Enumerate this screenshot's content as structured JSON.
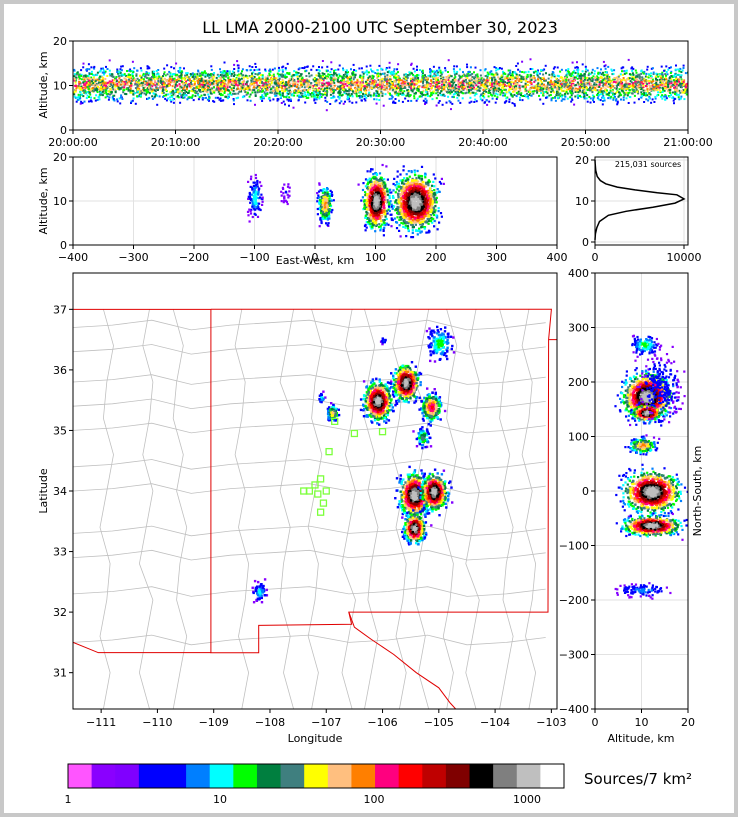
{
  "chart_data": [
    {
      "type": "heatmap",
      "panel": "time-altitude",
      "title": "LL LMA 2000-2100 UTC September 30, 2023",
      "xlabel": "",
      "ylabel": "Altitude, km",
      "xticks": [
        "20:00:00",
        "20:10:00",
        "20:20:00",
        "20:30:00",
        "20:40:00",
        "20:50:00",
        "21:00:00"
      ],
      "yticks": [
        "0",
        "10",
        "20"
      ],
      "ylim": [
        0,
        20
      ],
      "grid": true
    },
    {
      "type": "heatmap",
      "panel": "east-west-altitude",
      "xlabel": "East-West, km",
      "ylabel": "Altitude, km",
      "xticks": [
        "−400",
        "−300",
        "−200",
        "−100",
        "0",
        "100",
        "200",
        "300",
        "400"
      ],
      "yticks": [
        "0",
        "10",
        "20"
      ],
      "xlim": [
        -400,
        400
      ],
      "ylim": [
        0,
        20
      ],
      "grid": true,
      "cells": [
        {
          "x": 100,
          "y": 10,
          "peak": "1000+"
        },
        {
          "x": 165,
          "y": 10,
          "peak": "1000+"
        },
        {
          "x": 15,
          "y": 10,
          "peak": "100"
        },
        {
          "x": -100,
          "y": 11,
          "peak": "10"
        }
      ]
    },
    {
      "type": "line",
      "panel": "altitude-histogram",
      "annotation": "215,031 sources",
      "xticks": [
        "0",
        "10000"
      ],
      "yticks": [
        "0",
        "10",
        "20"
      ],
      "xlim": [
        0,
        10000
      ],
      "ylim": [
        0,
        20
      ],
      "series": [
        {
          "x": [
            0,
            50,
            200,
            500,
            1500,
            3500,
            6500,
            9000,
            10000,
            9200,
            7000,
            4500,
            2500,
            1200,
            600,
            250,
            80,
            20,
            0
          ],
          "y": [
            0.5,
            2,
            3.5,
            5,
            6.5,
            7.5,
            8.5,
            9.5,
            10.5,
            11.5,
            12,
            12.7,
            13.4,
            14.2,
            15,
            16,
            17.5,
            19,
            20
          ]
        }
      ]
    },
    {
      "type": "heatmap",
      "panel": "plan-view",
      "xlabel": "Longitude",
      "ylabel": "Latitude",
      "xticks": [
        "−111",
        "−110",
        "−109",
        "−108",
        "−107",
        "−106",
        "−105",
        "−104",
        "−103"
      ],
      "yticks": [
        "31",
        "32",
        "33",
        "34",
        "35",
        "36",
        "37"
      ],
      "xlim": [
        -111.5,
        -102.9
      ],
      "ylim": [
        30.4,
        37.6
      ],
      "stations": [
        [
          -107.3,
          34.0
        ],
        [
          -107.2,
          34.1
        ],
        [
          -107.1,
          34.2
        ],
        [
          -107.0,
          34.0
        ],
        [
          -107.15,
          33.95
        ],
        [
          -107.05,
          33.8
        ],
        [
          -107.1,
          33.65
        ],
        [
          -106.95,
          34.65
        ],
        [
          -106.85,
          35.15
        ],
        [
          -106.5,
          34.95
        ],
        [
          -106.0,
          34.98
        ],
        [
          -107.4,
          34.0
        ]
      ],
      "cells": [
        {
          "lon": -105.45,
          "lat": 33.95,
          "peak": "1000+"
        },
        {
          "lon": -105.1,
          "lat": 34.0,
          "peak": "1000+"
        },
        {
          "lon": -105.45,
          "lat": 33.4,
          "peak": "1000+"
        },
        {
          "lon": -106.1,
          "lat": 35.55,
          "peak": "1000+"
        },
        {
          "lon": -105.6,
          "lat": 35.8,
          "peak": "1000+"
        },
        {
          "lon": -105.15,
          "lat": 35.4,
          "peak": "100"
        },
        {
          "lon": -106.9,
          "lat": 35.3,
          "peak": "100"
        },
        {
          "lon": -105.0,
          "lat": 36.45,
          "peak": "10"
        },
        {
          "lon": -108.2,
          "lat": 32.35,
          "peak": "10"
        }
      ]
    },
    {
      "type": "heatmap",
      "panel": "altitude-north-south",
      "xlabel": "Altitude, km",
      "ylabel": "North-South, km",
      "xticks": [
        "0",
        "10",
        "20"
      ],
      "yticks": [
        "−400",
        "−300",
        "−200",
        "−100",
        "0",
        "100",
        "200",
        "300",
        "400"
      ],
      "xlim": [
        0,
        20
      ],
      "ylim": [
        -400,
        400
      ],
      "cells": [
        {
          "alt": 11,
          "ns": 180,
          "peak": "1000+"
        },
        {
          "alt": 11,
          "ns": 150,
          "peak": "1000+"
        },
        {
          "alt": 10,
          "ns": 85,
          "peak": "100"
        },
        {
          "alt": 12,
          "ns": 0,
          "peak": "1000+"
        },
        {
          "alt": 12,
          "ns": -60,
          "peak": "1000+"
        },
        {
          "alt": 10,
          "ns": 270,
          "peak": "10"
        },
        {
          "alt": 10,
          "ns": -180,
          "peak": "10"
        }
      ]
    },
    {
      "type": "colorbar",
      "label": "Sources/7 km²",
      "ticks": [
        "1",
        "10",
        "100",
        "1000"
      ],
      "scale": "log",
      "colors": [
        "#ff55ff",
        "#8a00ff",
        "#8000ff",
        "#0000ff",
        "#0000ff",
        "#007fff",
        "#00ffff",
        "#00ff00",
        "#007f3f",
        "#3f7f7f",
        "#ffff00",
        "#ffbf7f",
        "#ff7f00",
        "#ff007f",
        "#ff0000",
        "#bf0000",
        "#7f0000",
        "#000000",
        "#7f7f7f",
        "#bfbfbf",
        "#ffffff"
      ]
    }
  ]
}
